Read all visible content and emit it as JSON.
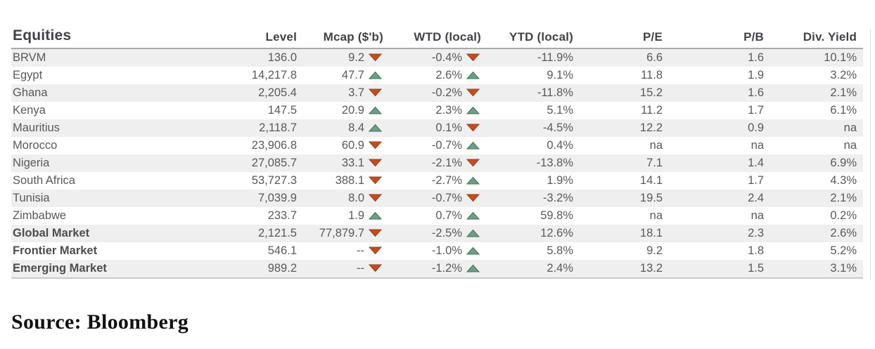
{
  "table": {
    "title": "Equities",
    "columns": [
      "Level",
      "Mcap ($'b)",
      "WTD (local)",
      "YTD (local)",
      "P/E",
      "P/B",
      "Div. Yield"
    ],
    "rows": [
      {
        "name": "BRVM",
        "level": "136.0",
        "mcap": "9.2",
        "mcap_trend": "down",
        "wtd": "-0.4%",
        "wtd_trend": "down",
        "ytd": "-11.9%",
        "pe": "6.6",
        "pb": "1.6",
        "div_yield": "10.1%",
        "emphasis": false
      },
      {
        "name": "Egypt",
        "level": "14,217.8",
        "mcap": "47.7",
        "mcap_trend": "up",
        "wtd": "2.6%",
        "wtd_trend": "up",
        "ytd": "9.1%",
        "pe": "11.8",
        "pb": "1.9",
        "div_yield": "3.2%",
        "emphasis": false
      },
      {
        "name": "Ghana",
        "level": "2,205.4",
        "mcap": "3.7",
        "mcap_trend": "down",
        "wtd": "-0.2%",
        "wtd_trend": "down",
        "ytd": "-11.8%",
        "pe": "15.2",
        "pb": "1.6",
        "div_yield": "2.1%",
        "emphasis": false
      },
      {
        "name": "Kenya",
        "level": "147.5",
        "mcap": "20.9",
        "mcap_trend": "up",
        "wtd": "2.3%",
        "wtd_trend": "up",
        "ytd": "5.1%",
        "pe": "11.2",
        "pb": "1.7",
        "div_yield": "6.1%",
        "emphasis": false
      },
      {
        "name": "Mauritius",
        "level": "2,118.7",
        "mcap": "8.4",
        "mcap_trend": "up",
        "wtd": "0.1%",
        "wtd_trend": "down",
        "ytd": "-4.5%",
        "pe": "12.2",
        "pb": "0.9",
        "div_yield": "na",
        "emphasis": false
      },
      {
        "name": "Morocco",
        "level": "23,906.8",
        "mcap": "60.9",
        "mcap_trend": "down",
        "wtd": "-0.7%",
        "wtd_trend": "up",
        "ytd": "0.4%",
        "pe": "na",
        "pb": "na",
        "div_yield": "na",
        "emphasis": false
      },
      {
        "name": "Nigeria",
        "level": "27,085.7",
        "mcap": "33.1",
        "mcap_trend": "down",
        "wtd": "-2.1%",
        "wtd_trend": "down",
        "ytd": "-13.8%",
        "pe": "7.1",
        "pb": "1.4",
        "div_yield": "6.9%",
        "emphasis": false
      },
      {
        "name": "South Africa",
        "level": "53,727.3",
        "mcap": "388.1",
        "mcap_trend": "down",
        "wtd": "-2.7%",
        "wtd_trend": "up",
        "ytd": "1.9%",
        "pe": "14.1",
        "pb": "1.7",
        "div_yield": "4.3%",
        "emphasis": false
      },
      {
        "name": "Tunisia",
        "level": "7,039.9",
        "mcap": "8.0",
        "mcap_trend": "down",
        "wtd": "-0.7%",
        "wtd_trend": "down",
        "ytd": "-3.2%",
        "pe": "19.5",
        "pb": "2.4",
        "div_yield": "2.1%",
        "emphasis": false
      },
      {
        "name": "Zimbabwe",
        "level": "233.7",
        "mcap": "1.9",
        "mcap_trend": "up",
        "wtd": "0.7%",
        "wtd_trend": "up",
        "ytd": "59.8%",
        "pe": "na",
        "pb": "na",
        "div_yield": "0.2%",
        "emphasis": false
      },
      {
        "name": "Global Market",
        "level": "2,121.5",
        "mcap": "77,879.7",
        "mcap_trend": "down",
        "wtd": "-2.5%",
        "wtd_trend": "up",
        "ytd": "12.6%",
        "pe": "18.1",
        "pb": "2.3",
        "div_yield": "2.6%",
        "emphasis": true
      },
      {
        "name": "Frontier Market",
        "level": "546.1",
        "mcap": "--",
        "mcap_trend": "down",
        "wtd": "-1.0%",
        "wtd_trend": "up",
        "ytd": "5.8%",
        "pe": "9.2",
        "pb": "1.8",
        "div_yield": "5.2%",
        "emphasis": true
      },
      {
        "name": "Emerging Market",
        "level": "989.2",
        "mcap": "--",
        "mcap_trend": "down",
        "wtd": "-1.2%",
        "wtd_trend": "up",
        "ytd": "2.4%",
        "pe": "13.2",
        "pb": "1.5",
        "div_yield": "3.1%",
        "emphasis": true
      }
    ]
  },
  "icons": {
    "trend_up": "triangle-up",
    "trend_down": "triangle-down"
  },
  "colors": {
    "trend_up_fill": "#6E9E85",
    "trend_up_stroke": "#417257",
    "trend_down_fill": "#C24D22",
    "trend_down_stroke": "#9C3C18",
    "stripe": "#EFEFEF",
    "body_text": "#595959",
    "header_text": "#404347",
    "header_rule": "#A9A9A9",
    "bottom_rule": "#C9C9C9",
    "side_rule": "#D9D9D9",
    "source_text": "#111111"
  },
  "source": {
    "label": "Source: Bloomberg"
  }
}
